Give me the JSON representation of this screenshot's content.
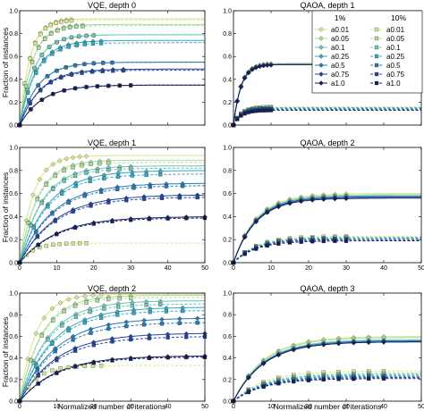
{
  "figure": {
    "ylabel": "Fraction of instances",
    "xlabel": "Normalized number of iterations"
  },
  "legend": {
    "placement": "top-right of upper-right panel",
    "col1_header": "1%",
    "col2_header": "10%",
    "entries": [
      {
        "label": "a0.01",
        "color": "#d4e68a",
        "marker": "diamond"
      },
      {
        "label": "a0.05",
        "color": "#a9db9a",
        "marker": "diamond"
      },
      {
        "label": "a0.1",
        "color": "#6cc4b4",
        "marker": "diamond"
      },
      {
        "label": "a0.25",
        "color": "#35a6c2",
        "marker": "diamond"
      },
      {
        "label": "a0.5",
        "color": "#2878b3",
        "marker": "diamond"
      },
      {
        "label": "a0.75",
        "color": "#23449a",
        "marker": "diamond"
      },
      {
        "label": "a1.0",
        "color": "#141e5c",
        "marker": "diamond"
      }
    ],
    "labels_col2": [
      "a0.01",
      "a0.05",
      "a0.1",
      "a0.25",
      "a0.5",
      "a0.75",
      "a1.0"
    ]
  },
  "chart_data": [
    {
      "type": "line",
      "title": "VQE, depth 0",
      "xlabel": "",
      "ylabel": "Fraction of instances",
      "xlim": [
        0,
        50
      ],
      "ylim": [
        0,
        1.0
      ],
      "xticks": [
        0,
        10,
        20,
        30,
        40,
        50
      ],
      "yticks": [
        "0.0",
        "0.2",
        "0.4",
        "0.6",
        "0.8",
        "1.0"
      ],
      "x_tick_labels_shown": false,
      "grid": false,
      "series_1pct_plateaus": [
        0.93,
        0.88,
        0.79,
        0.74,
        0.55,
        0.49,
        0.35
      ],
      "series_10pct_plateaus": [
        0.92,
        0.87,
        0.79,
        0.72,
        0.55,
        0.48,
        0.35
      ],
      "reach_iteration": [
        14,
        17,
        20,
        22,
        25,
        28,
        30
      ]
    },
    {
      "type": "line",
      "title": "QAOA, depth 1",
      "xlabel": "",
      "ylabel": "",
      "xlim": [
        0,
        50
      ],
      "ylim": [
        0,
        1.0
      ],
      "xticks": [
        0,
        10,
        20,
        30,
        40,
        50
      ],
      "yticks": [
        "0.0",
        "0.2",
        "0.4",
        "0.6",
        "0.8",
        "1.0"
      ],
      "x_tick_labels_shown": false,
      "grid": false,
      "series_1pct_plateaus": [
        0.54,
        0.54,
        0.53,
        0.53,
        0.53,
        0.53,
        0.53
      ],
      "series_10pct_plateaus": [
        0.16,
        0.15,
        0.15,
        0.15,
        0.14,
        0.14,
        0.13
      ],
      "reach_iteration": [
        10,
        10,
        10,
        10,
        10,
        10,
        10
      ]
    },
    {
      "type": "line",
      "title": "VQE, depth 1",
      "xlabel": "",
      "ylabel": "Fraction of instances",
      "xlim": [
        0,
        50
      ],
      "ylim": [
        0,
        1.0
      ],
      "xticks": [
        0,
        10,
        20,
        30,
        40,
        50
      ],
      "yticks": [
        "0.0",
        "0.2",
        "0.4",
        "0.6",
        "0.8",
        "1.0"
      ],
      "x_tick_labels_shown": true,
      "grid": false,
      "series_1pct_plateaus": [
        0.93,
        0.89,
        0.84,
        0.8,
        0.69,
        0.59,
        0.4
      ],
      "series_10pct_plateaus": [
        0.17,
        0.87,
        0.82,
        0.77,
        0.67,
        0.57,
        0.39
      ],
      "reach_iteration": [
        18,
        24,
        30,
        38,
        44,
        48,
        50
      ]
    },
    {
      "type": "line",
      "title": "QAOA, depth 2",
      "xlabel": "",
      "ylabel": "",
      "xlim": [
        0,
        50
      ],
      "ylim": [
        0,
        1.0
      ],
      "xticks": [
        0,
        10,
        20,
        30,
        40,
        50
      ],
      "yticks": [
        "0.0",
        "0.2",
        "0.4",
        "0.6",
        "0.8",
        "1.0"
      ],
      "x_tick_labels_shown": true,
      "grid": false,
      "series_1pct_plateaus": [
        0.6,
        0.59,
        0.58,
        0.58,
        0.57,
        0.57,
        0.56
      ],
      "series_10pct_plateaus": [
        0.23,
        0.22,
        0.22,
        0.21,
        0.21,
        0.2,
        0.19
      ],
      "reach_iteration": [
        30,
        30,
        30,
        30,
        30,
        30,
        30
      ]
    },
    {
      "type": "line",
      "title": "VQE, depth 2",
      "xlabel": "Normalized number of iterations",
      "ylabel": "Fraction of instances",
      "xlim": [
        0,
        50
      ],
      "ylim": [
        0,
        1.0
      ],
      "xticks": [
        0,
        10,
        20,
        30,
        40,
        50
      ],
      "yticks": [
        "0.0",
        "0.2",
        "0.4",
        "0.6",
        "0.8",
        "1.0"
      ],
      "x_tick_labels_shown": true,
      "grid": false,
      "series_1pct_plateaus": [
        0.99,
        0.98,
        0.93,
        0.87,
        0.77,
        0.63,
        0.42
      ],
      "series_10pct_plateaus": [
        0.33,
        0.96,
        0.9,
        0.84,
        0.73,
        0.6,
        0.41
      ],
      "reach_iteration": [
        22,
        30,
        38,
        44,
        48,
        50,
        50
      ]
    },
    {
      "type": "line",
      "title": "QAOA, depth 3",
      "xlabel": "Normalized number of iterations",
      "ylabel": "",
      "xlim": [
        0,
        50
      ],
      "ylim": [
        0,
        1.0
      ],
      "xticks": [
        0,
        10,
        20,
        30,
        40,
        50
      ],
      "yticks": [
        "0.0",
        "0.2",
        "0.4",
        "0.6",
        "0.8",
        "1.0"
      ],
      "x_tick_labels_shown": true,
      "grid": false,
      "series_1pct_plateaus": [
        0.6,
        0.59,
        0.57,
        0.56,
        0.56,
        0.55,
        0.55
      ],
      "series_10pct_plateaus": [
        0.28,
        0.26,
        0.25,
        0.24,
        0.23,
        0.22,
        0.21
      ],
      "reach_iteration": [
        40,
        40,
        40,
        40,
        40,
        40,
        40
      ]
    }
  ]
}
